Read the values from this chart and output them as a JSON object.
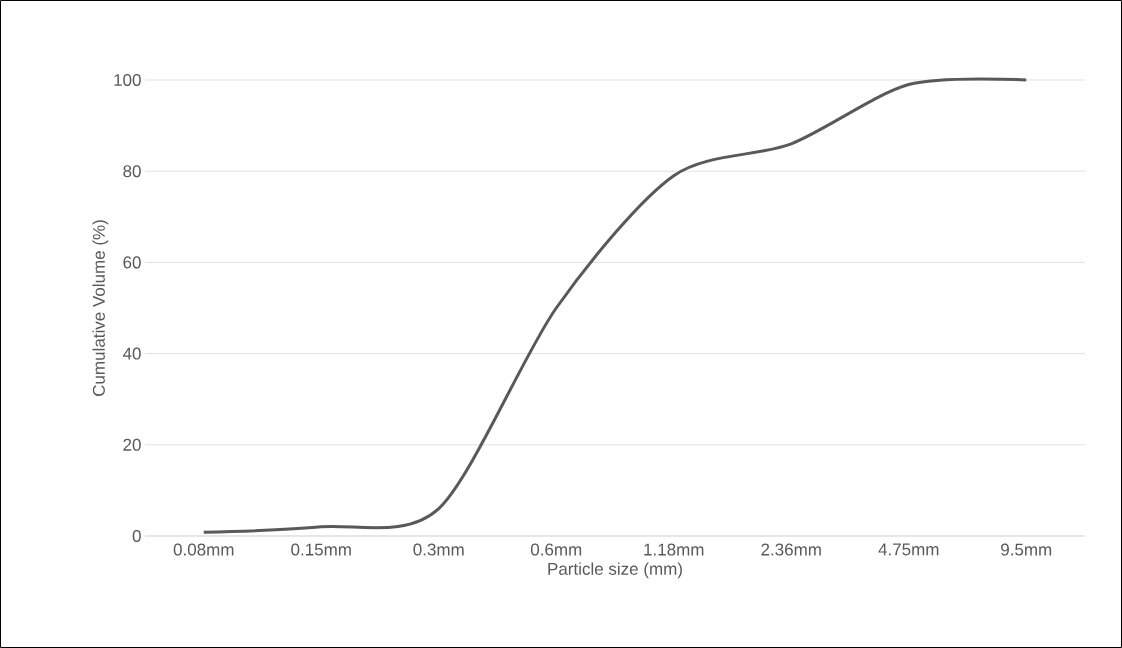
{
  "chart_data": {
    "type": "line",
    "xlabel": "Particle size (mm)",
    "ylabel": "Cumulative Volume (%)",
    "categories": [
      "0.08mm",
      "0.15mm",
      "0.3mm",
      "0.6mm",
      "1.18mm",
      "2.36mm",
      "4.75mm",
      "9.5mm"
    ],
    "series": [
      {
        "color": "#595959",
        "values": [
          0.8,
          2,
          6,
          50,
          79,
          86,
          99,
          100
        ]
      }
    ],
    "ylim": [
      0,
      100
    ],
    "yticks": [
      0,
      20,
      40,
      60,
      80,
      100
    ],
    "grid": "y",
    "marker": "none",
    "line_style": "solid"
  }
}
